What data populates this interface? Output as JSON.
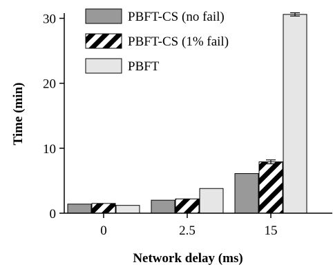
{
  "chart_data": {
    "type": "bar",
    "xlabel": "Network delay (ms)",
    "ylabel": "Time (min)",
    "categories": [
      "0",
      "2.5",
      "15"
    ],
    "ylim": [
      0,
      30.8
    ],
    "yticks": [
      0,
      10,
      20,
      30
    ],
    "grid": false,
    "legend_position": "top-left",
    "series": [
      {
        "name": "PBFT-CS (no fail)",
        "values": [
          1.4,
          2.0,
          6.1
        ],
        "errors": [
          0,
          0,
          0
        ],
        "fill": "#999999",
        "pattern": "solid"
      },
      {
        "name": "PBFT-CS (1% fail)",
        "values": [
          1.5,
          2.2,
          7.9
        ],
        "errors": [
          0,
          0,
          0.3
        ],
        "fill": "#000000",
        "pattern": "diagonal-stripes"
      },
      {
        "name": "PBFT",
        "values": [
          1.2,
          3.8,
          30.6
        ],
        "errors": [
          0,
          0,
          0.25
        ],
        "fill": "#e6e6e6",
        "pattern": "solid"
      }
    ]
  }
}
